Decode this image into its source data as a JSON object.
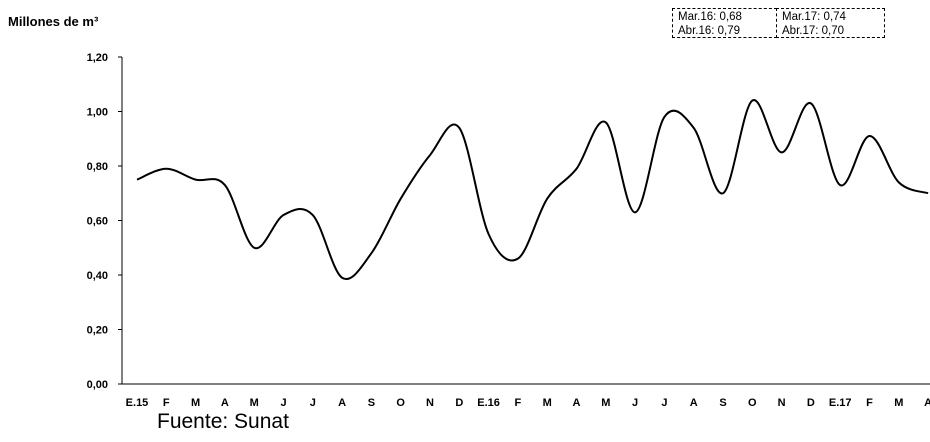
{
  "chart_data": {
    "type": "line",
    "ylabel": "Millones de m³",
    "ylim": [
      0,
      1.2
    ],
    "yticks": [
      "0,00",
      "0,20",
      "0,40",
      "0,60",
      "0,80",
      "1,00",
      "1,20"
    ],
    "categories": [
      "E.15",
      "F",
      "M",
      "A",
      "M",
      "J",
      "J",
      "A",
      "S",
      "O",
      "N",
      "D",
      "E.16",
      "F",
      "M",
      "A",
      "M",
      "J",
      "J",
      "A",
      "S",
      "O",
      "N",
      "D",
      "E.17",
      "F",
      "M",
      "A"
    ],
    "series": [
      {
        "values": [
          0.75,
          0.79,
          0.75,
          0.73,
          0.5,
          0.62,
          0.62,
          0.39,
          0.48,
          0.68,
          0.84,
          0.94,
          0.55,
          0.46,
          0.68,
          0.79,
          0.96,
          0.63,
          0.98,
          0.94,
          0.7,
          1.04,
          0.85,
          1.03,
          0.73,
          0.91,
          0.74,
          0.7
        ]
      }
    ],
    "grid": false,
    "annotations": [
      {
        "line1": "Mar.16: 0,68",
        "line2": "Abr.16: 0,79"
      },
      {
        "line1": "Mar.17: 0,74",
        "line2": "Abr.17: 0,70"
      }
    ],
    "source": "Fuente: Sunat"
  }
}
